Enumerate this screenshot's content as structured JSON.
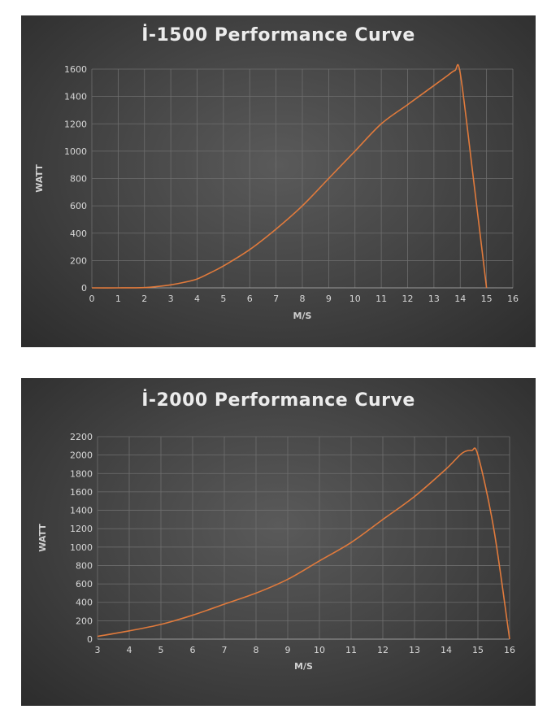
{
  "chart_data": [
    {
      "type": "line",
      "title": "İ-1500 Performance Curve",
      "xlabel": "M/S",
      "ylabel": "WATT",
      "xlim": [
        0,
        16
      ],
      "ylim": [
        0,
        1600
      ],
      "xticks": [
        0,
        1,
        2,
        3,
        4,
        5,
        6,
        7,
        8,
        9,
        10,
        11,
        12,
        13,
        14,
        15,
        16
      ],
      "yticks": [
        0,
        200,
        400,
        600,
        800,
        1000,
        1200,
        1400,
        1600
      ],
      "grid": true,
      "line_color": "#e07a3c",
      "series": [
        {
          "x": [
            0,
            1,
            2,
            2.5,
            3,
            3.5,
            4,
            4.5,
            5,
            6,
            7,
            8,
            9,
            10,
            11,
            12,
            13,
            13.5,
            13.8,
            14,
            14.5,
            15
          ],
          "y": [
            0,
            0,
            2,
            10,
            22,
            40,
            65,
            110,
            160,
            280,
            430,
            600,
            800,
            1000,
            1200,
            1340,
            1480,
            1550,
            1590,
            1570,
            800,
            0
          ]
        }
      ]
    },
    {
      "type": "line",
      "title": "İ-2000 Performance Curve",
      "xlabel": "M/S",
      "ylabel": "WATT",
      "xlim": [
        3,
        16
      ],
      "ylim": [
        0,
        2200
      ],
      "xticks": [
        3,
        4,
        5,
        6,
        7,
        8,
        9,
        10,
        11,
        12,
        13,
        14,
        15,
        16
      ],
      "yticks": [
        0,
        200,
        400,
        600,
        800,
        1000,
        1200,
        1400,
        1600,
        1800,
        2000,
        2200
      ],
      "grid": true,
      "line_color": "#e07a3c",
      "series": [
        {
          "x": [
            3,
            4,
            5,
            6,
            7,
            8,
            9,
            10,
            11,
            12,
            13,
            14,
            14.5,
            14.8,
            15,
            15.5,
            16
          ],
          "y": [
            30,
            90,
            160,
            260,
            380,
            500,
            650,
            850,
            1050,
            1300,
            1550,
            1850,
            2020,
            2050,
            2000,
            1200,
            0
          ]
        }
      ]
    }
  ]
}
